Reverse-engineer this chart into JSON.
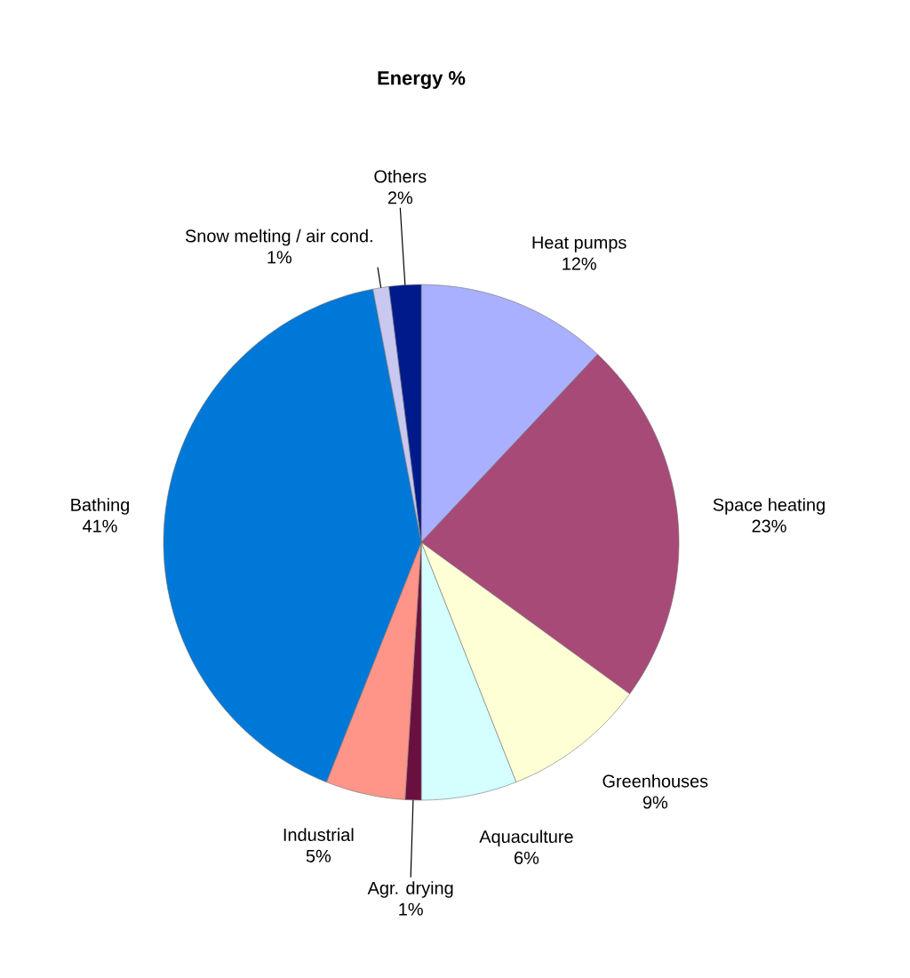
{
  "chart_data": {
    "type": "pie",
    "title": "Energy %",
    "categories": [
      "Heat pumps",
      "Space heating",
      "Greenhouses",
      "Aquaculture",
      "Agr. drying",
      "Industrial",
      "Bathing",
      "Snow melting / air cond.",
      "Others"
    ],
    "values": [
      12,
      23,
      9,
      6,
      1,
      5,
      41,
      1,
      2
    ],
    "value_labels": [
      "12%",
      "23%",
      "9%",
      "6%",
      "1%",
      "5%",
      "41%",
      "1%",
      "2%"
    ],
    "colors": [
      "#a9b0ff",
      "#a84a78",
      "#ffffd6",
      "#d5ffff",
      "#6a1040",
      "#ff9488",
      "#0078d7",
      "#c8c8f0",
      "#001a8c"
    ]
  }
}
